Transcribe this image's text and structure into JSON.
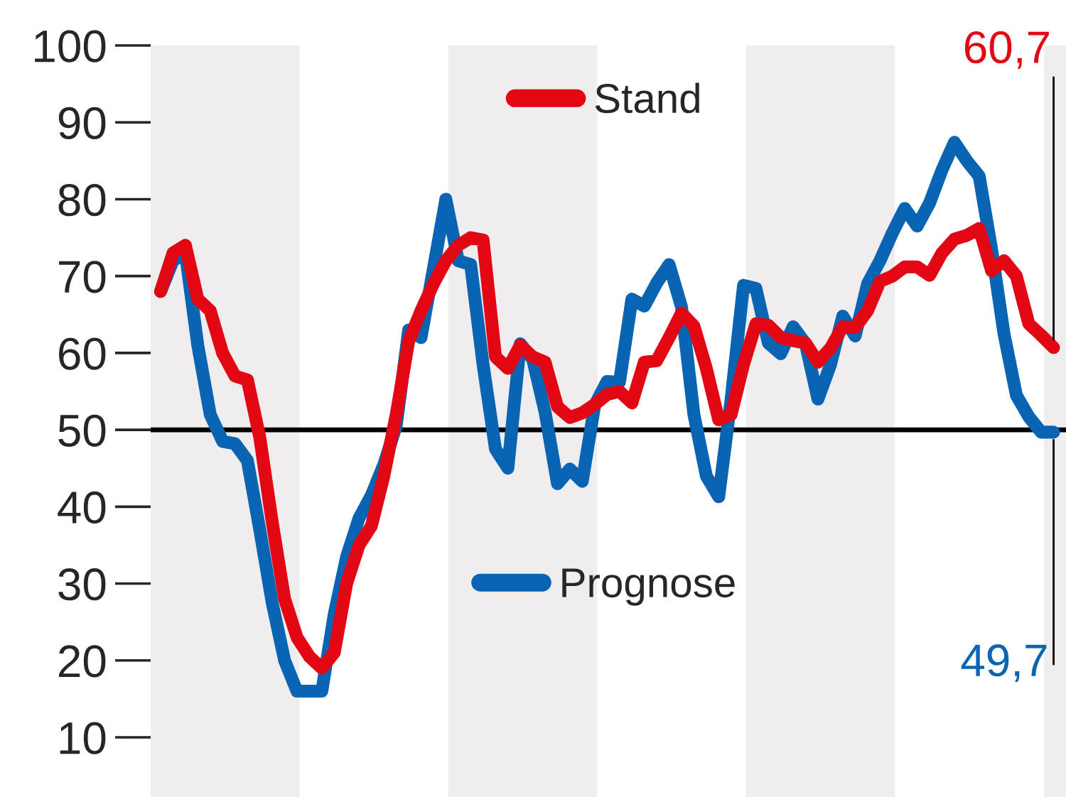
{
  "chart_data": {
    "type": "line",
    "categories": [
      null,
      null,
      null,
      null,
      null,
      null,
      null,
      null,
      null,
      null,
      null,
      null,
      null,
      null,
      null,
      null,
      null,
      null,
      null,
      null,
      null,
      null,
      null,
      null,
      null,
      null,
      null,
      null,
      null,
      null,
      null,
      null,
      null,
      null,
      null,
      null,
      null,
      null,
      null,
      null,
      null,
      null,
      null,
      null,
      null,
      null,
      null,
      null,
      null,
      null,
      null,
      null,
      null,
      null,
      null,
      null,
      null,
      null,
      null,
      null,
      null,
      null,
      null,
      null,
      null,
      null,
      null,
      null,
      null,
      null,
      null,
      null,
      null
    ],
    "ylim": [
      10,
      100
    ],
    "yticks": [
      10,
      20,
      30,
      40,
      50,
      60,
      70,
      80,
      90,
      100
    ],
    "tick_labels": "y",
    "grid": false,
    "legend": "top",
    "line_style": "solid",
    "marker": "none",
    "series": [
      {
        "name": "Stand",
        "color": "#e30613",
        "values": [
          68,
          73,
          74,
          67,
          65.5,
          60,
          57,
          56.5,
          49,
          38,
          28,
          23,
          20.5,
          19,
          21,
          30,
          35,
          37.5,
          44,
          52,
          61.5,
          65.5,
          69,
          72,
          74,
          75,
          74.7,
          59.5,
          58,
          61,
          59.5,
          58.8,
          53,
          51.6,
          52.2,
          53.3,
          54.6,
          55,
          53.5,
          58.8,
          59,
          62,
          65.2,
          63.5,
          58,
          51.3,
          52,
          58.5,
          63.8,
          63.6,
          62,
          61.6,
          61.3,
          58.8,
          60.6,
          63.4,
          63.3,
          65.5,
          69.3,
          70,
          71.2,
          71.2,
          70.1,
          73,
          74.8,
          75.3,
          76.2,
          70.7,
          72,
          70,
          63.8,
          62.3,
          60.7
        ]
      },
      {
        "name": "Prognose",
        "color": "#0a64b4",
        "values": [
          68,
          72,
          73,
          61,
          52,
          48.5,
          48.2,
          46,
          37,
          27.5,
          20,
          16,
          16,
          16,
          26,
          33.5,
          38.5,
          41.5,
          45.5,
          50.5,
          63,
          62,
          71,
          80,
          72,
          71.5,
          58.5,
          47.5,
          45,
          61.2,
          59.2,
          52.3,
          43,
          44.9,
          43.3,
          53.2,
          56.3,
          56.2,
          67,
          66.1,
          69.1,
          71.5,
          66,
          52,
          44,
          41.3,
          54,
          68.8,
          68.4,
          61.3,
          59.9,
          63.4,
          61.2,
          54,
          58.4,
          64.8,
          62.2,
          69,
          72,
          75.6,
          78.8,
          76.5,
          79.5,
          83.8,
          87.4,
          85,
          83,
          73.5,
          62.5,
          54.5,
          51.7,
          49.7,
          49.7
        ]
      }
    ],
    "ref_lines": [
      {
        "axis": "y",
        "value": 50,
        "color": "#000000",
        "line_style": "solid"
      }
    ],
    "annotations": [
      "60,7",
      "49,7"
    ]
  }
}
